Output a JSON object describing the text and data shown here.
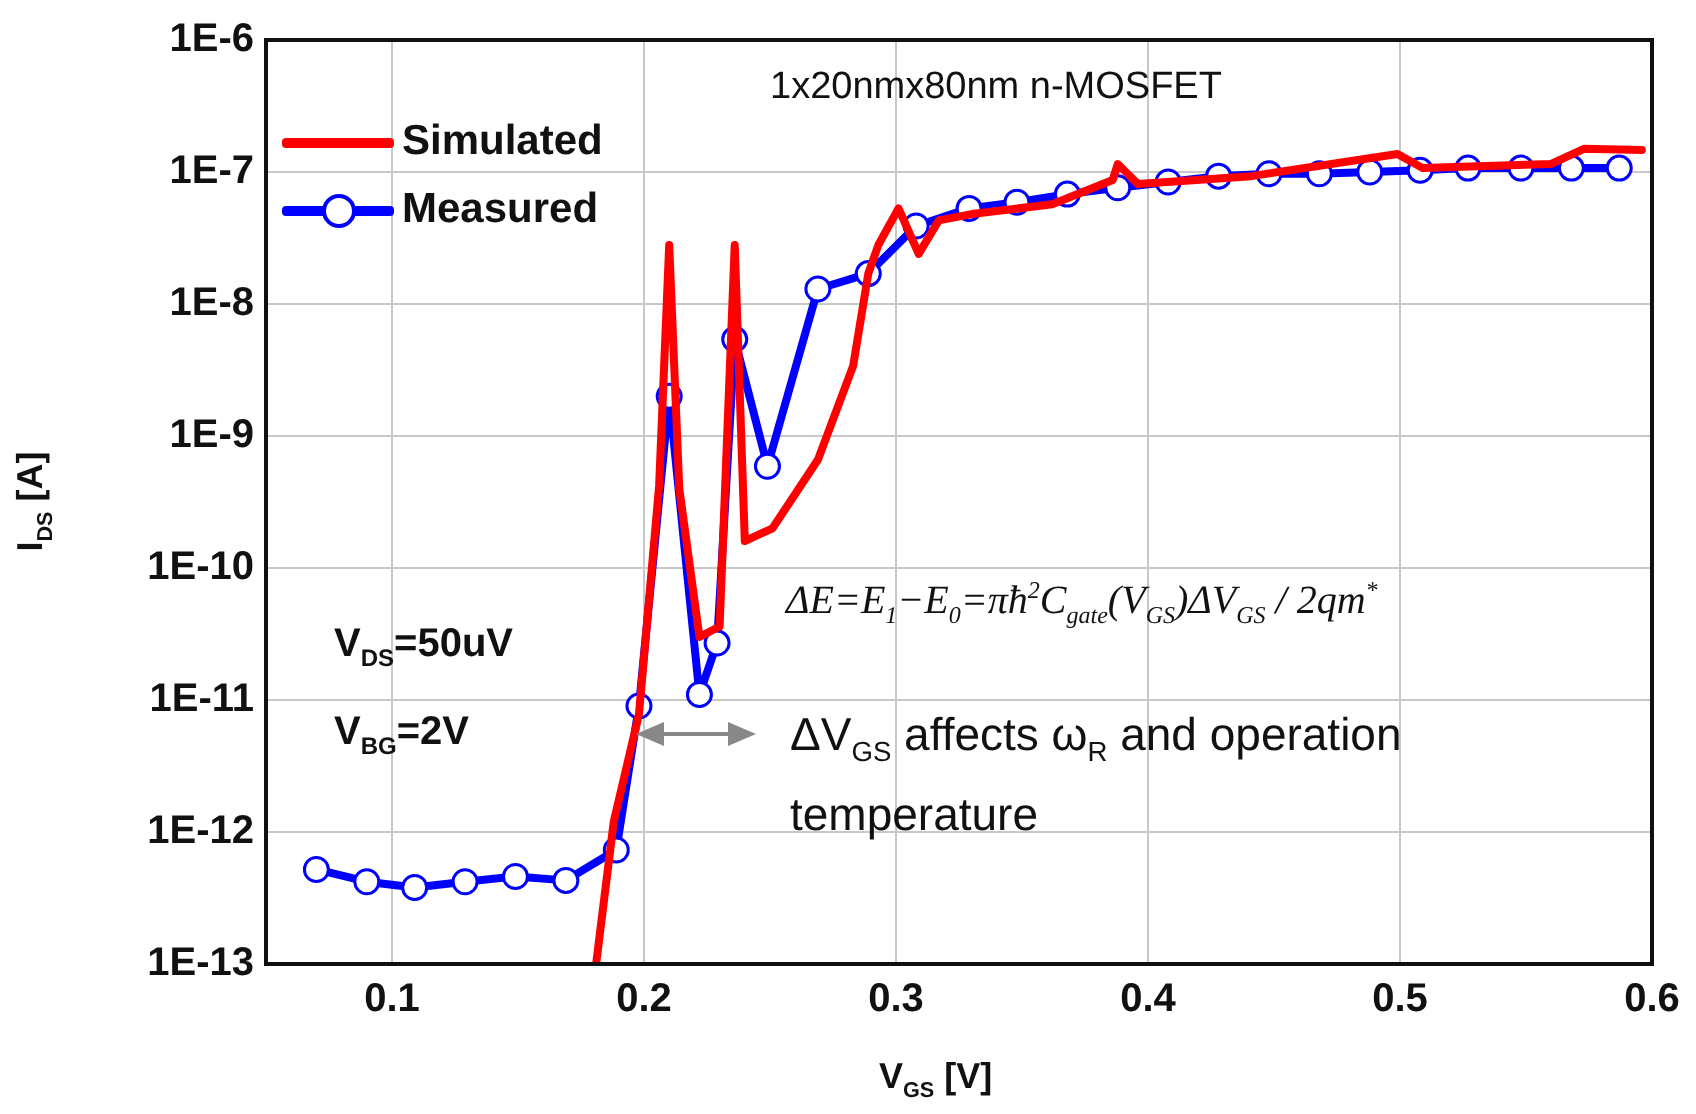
{
  "chart_data": {
    "type": "line",
    "xlabel": "V$_{GS}$ [V]",
    "ylabel": "I$_{DS}$ [A]",
    "log": "y",
    "grid": true,
    "legend": "top left",
    "line_style": "solid",
    "xlim": [
      0.05,
      0.6
    ],
    "xticks": [
      0.1,
      0.2,
      0.3,
      0.4,
      0.5,
      0.6
    ],
    "ylim": [
      1e-13,
      1e-06
    ],
    "yticks": [
      {
        "value": 1e-13,
        "label": "1E-13"
      },
      {
        "value": 1e-12,
        "label": "1E-12"
      },
      {
        "value": 1e-11,
        "label": "1E-11"
      },
      {
        "value": 1e-10,
        "label": "1E-10"
      },
      {
        "value": 1e-09,
        "label": "1E-9"
      },
      {
        "value": 1e-08,
        "label": "1E-8"
      },
      {
        "value": 1e-07,
        "label": "1E-7"
      },
      {
        "value": 1e-06,
        "label": "1E-6"
      }
    ],
    "series": [
      {
        "name": "Simulated",
        "color": "#ff0000",
        "marker": "none",
        "x": [
          0.181,
          0.188,
          0.198,
          0.206,
          0.21,
          0.214,
          0.222,
          0.23,
          0.236,
          0.24,
          0.251,
          0.269,
          0.283,
          0.289,
          0.293,
          0.301,
          0.309,
          0.317,
          0.33,
          0.362,
          0.386,
          0.388,
          0.396,
          0.441,
          0.499,
          0.509,
          0.56,
          0.573,
          0.596
        ],
        "values": [
          1e-13,
          1.2e-12,
          7.8e-12,
          4.2e-10,
          2.8e-08,
          4e-10,
          3e-11,
          3.6e-11,
          2.8e-08,
          1.6e-10,
          2e-10,
          6.6e-10,
          3.4e-09,
          1.7e-08,
          2.8e-08,
          5.3e-08,
          2.4e-08,
          4.3e-08,
          4.8e-08,
          5.7e-08,
          8.7e-08,
          1.15e-07,
          8.1e-08,
          9.3e-08,
          1.37e-07,
          1.07e-07,
          1.15e-07,
          1.5e-07,
          1.47e-07
        ]
      },
      {
        "name": "Measured",
        "color": "#0000ff",
        "marker": "circle",
        "x": [
          0.07,
          0.09,
          0.109,
          0.129,
          0.149,
          0.169,
          0.189,
          0.198,
          0.21,
          0.222,
          0.229,
          0.236,
          0.249,
          0.269,
          0.289,
          0.308,
          0.329,
          0.348,
          0.368,
          0.388,
          0.408,
          0.428,
          0.448,
          0.468,
          0.488,
          0.508,
          0.527,
          0.548,
          0.568,
          0.587
        ],
        "values": [
          5.2e-13,
          4.2e-13,
          3.8e-13,
          4.2e-13,
          4.6e-13,
          4.3e-13,
          7.3e-13,
          9e-12,
          2e-09,
          1.1e-11,
          2.7e-11,
          5.4e-09,
          5.9e-10,
          1.3e-08,
          1.7e-08,
          3.9e-08,
          5.3e-08,
          5.9e-08,
          6.8e-08,
          7.6e-08,
          8.4e-08,
          9.3e-08,
          9.7e-08,
          9.7e-08,
          1e-07,
          1.03e-07,
          1.07e-07,
          1.07e-07,
          1.07e-07,
          1.07e-07
        ]
      }
    ],
    "annotations": [
      "1x20nmx80nm n-MOSFET",
      "V$_{DS}$=50uV",
      "V$_{BG}$=2V",
      "ΔE=E$_{1}$−E$_{0}$=πħ$^{2}$C$_{gate}$(V$_{GS}$)ΔV$_{GS}$ / 2qm$^{*}$",
      "ΔV$_{GS}$ affects ω$_{R}$ and operation temperature"
    ]
  }
}
